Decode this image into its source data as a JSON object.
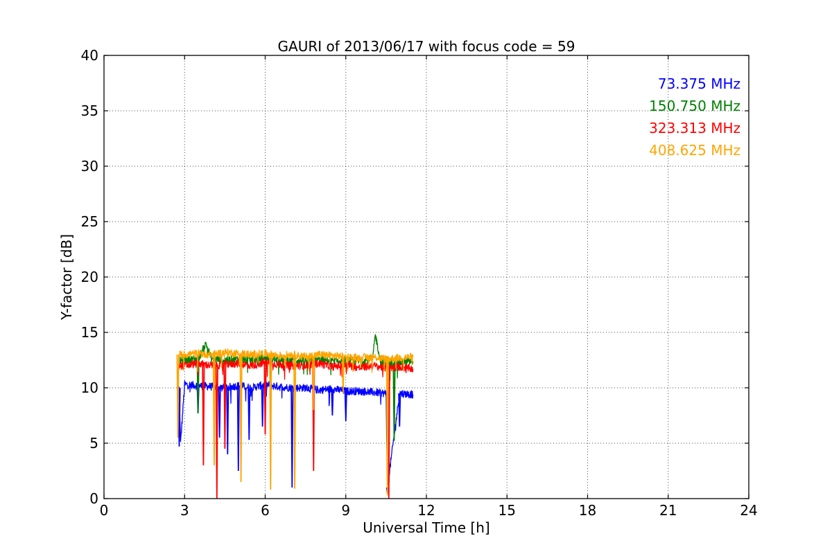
{
  "chart_data": {
    "type": "line",
    "title": "GAURI of 2013/06/17 with focus code = 59",
    "xlabel": "Universal Time [h]",
    "ylabel": "Y-factor [dB]",
    "xlim": [
      0,
      24
    ],
    "ylim": [
      0,
      40
    ],
    "xticks": [
      0,
      3,
      6,
      9,
      12,
      15,
      18,
      21,
      24
    ],
    "yticks": [
      0,
      5,
      10,
      15,
      20,
      25,
      30,
      35,
      40
    ],
    "x_tick_labels": [
      "0",
      "3",
      "6",
      "9",
      "12",
      "15",
      "18",
      "21",
      "24"
    ],
    "y_tick_labels": [
      "0",
      "5",
      "10",
      "15",
      "20",
      "25",
      "30",
      "35",
      "40"
    ],
    "grid": true,
    "legend_position": "top-right",
    "series": [
      {
        "name": "73.375 MHz",
        "color": "#0000ff",
        "x": [
          2.8,
          2.85,
          3.0,
          3.5,
          4.0,
          4.5,
          5.0,
          5.5,
          6.0,
          6.5,
          7.0,
          7.5,
          8.0,
          8.5,
          9.0,
          9.5,
          10.0,
          10.5,
          10.55,
          11.0,
          11.5
        ],
        "y": [
          10.0,
          5.0,
          10.3,
          10.2,
          10.1,
          10.0,
          10.2,
          10.0,
          10.3,
          10.1,
          10.0,
          10.0,
          9.8,
          9.9,
          9.7,
          9.7,
          9.6,
          9.5,
          1.0,
          9.5,
          9.4
        ],
        "dips": [
          [
            2.8,
            4.7
          ],
          [
            3.5,
            7.7
          ],
          [
            4.3,
            5.5
          ],
          [
            4.6,
            4.0
          ],
          [
            5.0,
            2.5
          ],
          [
            5.4,
            5.3
          ],
          [
            5.9,
            6.5
          ],
          [
            7.0,
            1.0
          ],
          [
            8.5,
            7.5
          ],
          [
            9.0,
            7.0
          ],
          [
            10.55,
            0.5
          ],
          [
            11.0,
            6.5
          ]
        ]
      },
      {
        "name": "150.750 MHz",
        "color": "#008000",
        "x": [
          2.8,
          3.0,
          3.5,
          3.8,
          4.0,
          4.5,
          5.0,
          5.5,
          6.0,
          6.5,
          7.0,
          7.5,
          8.0,
          8.5,
          9.0,
          9.5,
          10.0,
          10.1,
          10.3,
          10.5,
          11.0,
          11.5
        ],
        "y": [
          12.4,
          12.5,
          12.6,
          14.0,
          12.6,
          12.5,
          12.6,
          12.5,
          12.7,
          12.5,
          12.5,
          12.4,
          12.5,
          12.4,
          12.5,
          12.4,
          12.6,
          14.8,
          12.3,
          12.2,
          12.3,
          12.4
        ],
        "dips": [
          [
            3.5,
            7.7
          ],
          [
            6.2,
            7.0
          ],
          [
            10.8,
            5.2
          ]
        ]
      },
      {
        "name": "323.313 MHz",
        "color": "#ff0000",
        "x": [
          2.8,
          3.0,
          3.5,
          4.0,
          4.5,
          5.0,
          5.5,
          6.0,
          6.5,
          7.0,
          7.5,
          8.0,
          8.5,
          9.0,
          9.5,
          10.0,
          10.5,
          11.0,
          11.5
        ],
        "y": [
          12.0,
          12.0,
          12.2,
          12.0,
          12.1,
          12.2,
          12.0,
          12.3,
          12.1,
          12.0,
          12.0,
          12.2,
          11.9,
          12.1,
          11.8,
          12.0,
          11.8,
          11.9,
          11.7
        ],
        "dips": [
          [
            3.7,
            3.0
          ],
          [
            4.2,
            0.0
          ],
          [
            4.5,
            4.5
          ],
          [
            6.0,
            5.8
          ],
          [
            7.8,
            2.5
          ],
          [
            10.6,
            0.0
          ]
        ]
      },
      {
        "name": "408.625 MHz",
        "color": "#ffa500",
        "x": [
          2.8,
          3.0,
          3.5,
          4.0,
          4.5,
          5.0,
          5.5,
          6.0,
          6.5,
          7.0,
          7.5,
          8.0,
          8.5,
          9.0,
          9.5,
          10.0,
          10.5,
          11.0,
          11.5
        ],
        "y": [
          13.0,
          13.0,
          13.1,
          13.0,
          13.2,
          13.1,
          13.0,
          13.1,
          12.9,
          13.0,
          12.8,
          13.0,
          12.9,
          12.8,
          12.7,
          12.8,
          12.6,
          12.7,
          12.8
        ],
        "dips": [
          [
            2.75,
            5.5
          ],
          [
            4.1,
            3.0
          ],
          [
            5.1,
            1.5
          ],
          [
            6.2,
            0.8
          ],
          [
            7.1,
            0.9
          ],
          [
            7.8,
            8.0
          ],
          [
            8.9,
            9.5
          ],
          [
            10.55,
            0.3
          ]
        ]
      }
    ]
  }
}
